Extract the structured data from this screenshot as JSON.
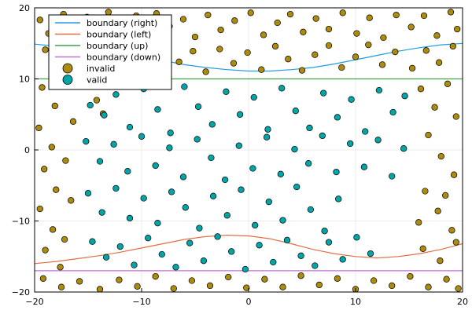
{
  "chart_data": {
    "type": "scatter",
    "xlim": [
      -20,
      20
    ],
    "ylim": [
      -20,
      20
    ],
    "x_ticks": [
      -20,
      -10,
      0,
      10,
      20
    ],
    "y_ticks": [
      -20,
      -10,
      0,
      10,
      20
    ],
    "x_tick_labels": [
      "−20",
      "−10",
      "0",
      "10",
      "20"
    ],
    "y_tick_labels": [
      "−20",
      "−10",
      "0",
      "10",
      "20"
    ],
    "grid": true,
    "legend_position": "top-left",
    "legend": [
      {
        "label": "boundary (right)",
        "kind": "line",
        "color": "#1f9ce4"
      },
      {
        "label": "boundary (left)",
        "kind": "line",
        "color": "#e26f46"
      },
      {
        "label": "boundary (up)",
        "kind": "line",
        "color": "#3ea44e"
      },
      {
        "label": "boundary (down)",
        "kind": "line",
        "color": "#c271d2"
      },
      {
        "label": "invalid",
        "kind": "marker",
        "color": "#ad8b0c"
      },
      {
        "label": "valid",
        "kind": "marker",
        "color": "#00a5a8"
      }
    ],
    "boundaries": {
      "up": {
        "y": 10,
        "color": "#3ea44e"
      },
      "down": {
        "y": -17,
        "color": "#c271d2"
      },
      "left": {
        "color": "#e26f46",
        "points": [
          [
            -20.0,
            -16.0
          ],
          [
            -18.0,
            -15.7
          ],
          [
            -16.0,
            -15.3
          ],
          [
            -14.0,
            -14.9
          ],
          [
            -12.0,
            -14.4
          ],
          [
            -10.0,
            -13.8
          ],
          [
            -8.0,
            -13.2
          ],
          [
            -6.0,
            -12.6
          ],
          [
            -4.0,
            -12.2
          ],
          [
            -2.0,
            -12.0
          ],
          [
            0.0,
            -12.1
          ],
          [
            2.0,
            -12.5
          ],
          [
            4.0,
            -13.2
          ],
          [
            5.0,
            -13.6
          ],
          [
            6.0,
            -14.0
          ],
          [
            8.0,
            -14.6
          ],
          [
            10.0,
            -15.0
          ],
          [
            12.0,
            -15.2
          ],
          [
            14.0,
            -15.0
          ],
          [
            16.0,
            -14.6
          ],
          [
            18.0,
            -14.0
          ],
          [
            20.0,
            -13.2
          ]
        ]
      },
      "right": {
        "color": "#1f9ce4",
        "points": [
          [
            -20.0,
            14.9
          ],
          [
            -18.0,
            14.6
          ],
          [
            -16.0,
            14.3
          ],
          [
            -14.0,
            14.1
          ],
          [
            -12.0,
            13.7
          ],
          [
            -10.0,
            13.2
          ],
          [
            -8.0,
            12.6
          ],
          [
            -6.0,
            12.0
          ],
          [
            -4.0,
            11.6
          ],
          [
            -2.0,
            11.3
          ],
          [
            0.0,
            11.1
          ],
          [
            2.0,
            11.1
          ],
          [
            4.0,
            11.3
          ],
          [
            6.0,
            11.6
          ],
          [
            8.0,
            12.1
          ],
          [
            10.0,
            12.7
          ],
          [
            12.0,
            13.3
          ],
          [
            14.0,
            13.9
          ],
          [
            16.0,
            14.4
          ],
          [
            18.0,
            14.8
          ],
          [
            20.0,
            15.0
          ]
        ]
      }
    },
    "colors": {
      "invalid": "#ad8b0c",
      "valid": "#00a5a8",
      "grid": "#ebebeb",
      "frame": "#000000"
    },
    "series": [
      {
        "name": "invalid",
        "points": [
          [
            -19.5,
            18.3
          ],
          [
            -18.7,
            16.4
          ],
          [
            -17.3,
            19.1
          ],
          [
            -16.2,
            17.2
          ],
          [
            -15.1,
            18.7
          ],
          [
            -14.3,
            16.0
          ],
          [
            -13.1,
            19.4
          ],
          [
            -11.8,
            17.6
          ],
          [
            -10.5,
            18.9
          ],
          [
            -9.2,
            16.3
          ],
          [
            -8.6,
            19.2
          ],
          [
            -7.4,
            17.4
          ],
          [
            -6.1,
            18.4
          ],
          [
            -5.0,
            15.9
          ],
          [
            -3.8,
            19.0
          ],
          [
            -2.6,
            16.9
          ],
          [
            -1.3,
            18.2
          ],
          [
            0.2,
            19.3
          ],
          [
            1.4,
            16.2
          ],
          [
            2.7,
            17.9
          ],
          [
            3.9,
            19.1
          ],
          [
            5.1,
            16.6
          ],
          [
            6.3,
            18.5
          ],
          [
            7.5,
            17.0
          ],
          [
            8.8,
            19.3
          ],
          [
            10.1,
            16.4
          ],
          [
            11.3,
            18.6
          ],
          [
            12.6,
            15.8
          ],
          [
            13.8,
            19.0
          ],
          [
            15.2,
            17.3
          ],
          [
            16.4,
            18.9
          ],
          [
            17.6,
            16.1
          ],
          [
            18.9,
            19.4
          ],
          [
            19.5,
            17.0
          ],
          [
            -19.0,
            14.1
          ],
          [
            -17.8,
            12.6
          ],
          [
            -16.7,
            14.8
          ],
          [
            -15.5,
            13.0
          ],
          [
            -14.2,
            11.4
          ],
          [
            -12.9,
            14.3
          ],
          [
            -11.6,
            12.0
          ],
          [
            -10.3,
            13.6
          ],
          [
            -9.0,
            11.1
          ],
          [
            -7.8,
            14.5
          ],
          [
            -6.5,
            12.4
          ],
          [
            -5.2,
            13.9
          ],
          [
            -4.0,
            11.0
          ],
          [
            -2.7,
            14.2
          ],
          [
            -1.4,
            12.2
          ],
          [
            -0.1,
            13.7
          ],
          [
            1.2,
            11.3
          ],
          [
            2.5,
            14.6
          ],
          [
            3.7,
            12.8
          ],
          [
            5.0,
            11.2
          ],
          [
            6.2,
            13.4
          ],
          [
            7.5,
            14.7
          ],
          [
            8.7,
            11.6
          ],
          [
            10.0,
            13.1
          ],
          [
            11.2,
            14.8
          ],
          [
            12.5,
            12.0
          ],
          [
            13.7,
            13.8
          ],
          [
            15.3,
            11.5
          ],
          [
            16.6,
            14.0
          ],
          [
            17.8,
            12.3
          ],
          [
            19.1,
            14.6
          ],
          [
            -19.3,
            8.8
          ],
          [
            -18.1,
            6.2
          ],
          [
            -19.6,
            3.1
          ],
          [
            -18.4,
            0.4
          ],
          [
            -19.1,
            -2.7
          ],
          [
            -18.0,
            -5.6
          ],
          [
            -19.5,
            -8.3
          ],
          [
            -18.3,
            -11.2
          ],
          [
            -19.0,
            -14.1
          ],
          [
            -17.6,
            -16.5
          ],
          [
            -16.9,
            9.1
          ],
          [
            -16.4,
            4.0
          ],
          [
            -17.1,
            -1.5
          ],
          [
            -16.6,
            -7.1
          ],
          [
            -17.2,
            -12.6
          ],
          [
            -14.2,
            7.0
          ],
          [
            -13.6,
            5.1
          ],
          [
            16.1,
            8.6
          ],
          [
            17.4,
            6.0
          ],
          [
            18.6,
            9.3
          ],
          [
            19.4,
            4.7
          ],
          [
            16.8,
            2.1
          ],
          [
            18.0,
            -0.9
          ],
          [
            19.2,
            -3.5
          ],
          [
            16.5,
            -5.8
          ],
          [
            17.7,
            -8.6
          ],
          [
            19.0,
            -11.3
          ],
          [
            16.3,
            -13.9
          ],
          [
            17.9,
            -15.6
          ],
          [
            19.4,
            -13.0
          ],
          [
            15.9,
            -10.2
          ],
          [
            18.4,
            -6.4
          ],
          [
            -19.2,
            -18.1
          ],
          [
            -17.5,
            -19.3
          ],
          [
            -15.8,
            -18.5
          ],
          [
            -13.9,
            -19.6
          ],
          [
            -12.1,
            -18.3
          ],
          [
            -10.4,
            -19.2
          ],
          [
            -8.7,
            -17.8
          ],
          [
            -7.0,
            -19.5
          ],
          [
            -5.3,
            -18.4
          ],
          [
            -3.6,
            -19.1
          ],
          [
            -1.9,
            -17.9
          ],
          [
            -0.2,
            -19.4
          ],
          [
            1.5,
            -18.2
          ],
          [
            3.2,
            -19.3
          ],
          [
            4.9,
            -17.7
          ],
          [
            6.6,
            -19.0
          ],
          [
            8.3,
            -18.1
          ],
          [
            10.0,
            -19.6
          ],
          [
            11.7,
            -18.4
          ],
          [
            13.4,
            -19.1
          ],
          [
            15.1,
            -17.8
          ],
          [
            16.8,
            -19.3
          ],
          [
            18.5,
            -18.2
          ],
          [
            19.6,
            -19.5
          ]
        ]
      },
      {
        "name": "valid",
        "points": [
          [
            -14.8,
            6.3
          ],
          [
            -13.5,
            4.9
          ],
          [
            -12.4,
            7.8
          ],
          [
            -11.1,
            3.2
          ],
          [
            -9.8,
            8.6
          ],
          [
            -8.5,
            5.7
          ],
          [
            -7.3,
            2.4
          ],
          [
            -6.0,
            8.9
          ],
          [
            -4.7,
            6.1
          ],
          [
            -3.4,
            3.6
          ],
          [
            -2.1,
            8.2
          ],
          [
            -0.8,
            5.0
          ],
          [
            0.5,
            7.4
          ],
          [
            1.8,
            2.9
          ],
          [
            3.1,
            8.7
          ],
          [
            4.4,
            5.5
          ],
          [
            5.7,
            3.1
          ],
          [
            7.0,
            8.0
          ],
          [
            8.3,
            4.6
          ],
          [
            9.6,
            7.1
          ],
          [
            10.9,
            2.6
          ],
          [
            12.2,
            8.4
          ],
          [
            13.5,
            5.3
          ],
          [
            14.6,
            7.6
          ],
          [
            -15.2,
            1.2
          ],
          [
            -13.9,
            -1.6
          ],
          [
            -12.6,
            0.8
          ],
          [
            -11.3,
            -3.0
          ],
          [
            -10.0,
            1.9
          ],
          [
            -8.7,
            -2.2
          ],
          [
            -7.4,
            0.3
          ],
          [
            -6.1,
            -3.8
          ],
          [
            -4.8,
            1.5
          ],
          [
            -3.5,
            -1.1
          ],
          [
            -2.2,
            -4.2
          ],
          [
            -0.9,
            0.6
          ],
          [
            0.4,
            -2.6
          ],
          [
            1.7,
            1.8
          ],
          [
            3.0,
            -3.4
          ],
          [
            4.3,
            0.1
          ],
          [
            5.6,
            -1.9
          ],
          [
            6.9,
            2.0
          ],
          [
            8.2,
            -3.1
          ],
          [
            9.5,
            0.9
          ],
          [
            10.8,
            -2.4
          ],
          [
            12.1,
            1.4
          ],
          [
            13.4,
            -3.7
          ],
          [
            14.5,
            0.2
          ],
          [
            -15.0,
            -6.1
          ],
          [
            -13.7,
            -8.8
          ],
          [
            -12.4,
            -5.4
          ],
          [
            -11.1,
            -9.6
          ],
          [
            -9.8,
            -6.8
          ],
          [
            -8.5,
            -10.3
          ],
          [
            -7.2,
            -5.9
          ],
          [
            -5.9,
            -8.1
          ],
          [
            -4.6,
            -11.0
          ],
          [
            -3.3,
            -6.5
          ],
          [
            -2.0,
            -9.2
          ],
          [
            -0.7,
            -5.6
          ],
          [
            0.6,
            -10.6
          ],
          [
            1.9,
            -7.3
          ],
          [
            3.2,
            -9.9
          ],
          [
            4.5,
            -5.2
          ],
          [
            5.8,
            -8.4
          ],
          [
            7.1,
            -11.4
          ],
          [
            8.4,
            -6.9
          ],
          [
            -14.6,
            -12.9
          ],
          [
            -13.3,
            -15.1
          ],
          [
            -12.0,
            -13.6
          ],
          [
            -10.7,
            -16.2
          ],
          [
            -9.4,
            -12.4
          ],
          [
            -8.1,
            -14.7
          ],
          [
            -6.8,
            -16.5
          ],
          [
            -5.5,
            -13.1
          ],
          [
            -4.2,
            -15.6
          ],
          [
            -2.9,
            -12.2
          ],
          [
            -1.6,
            -14.3
          ],
          [
            -0.3,
            -16.8
          ],
          [
            1.0,
            -13.4
          ],
          [
            2.3,
            -15.8
          ],
          [
            3.6,
            -12.7
          ],
          [
            4.9,
            -14.9
          ],
          [
            6.2,
            -16.3
          ],
          [
            7.5,
            -13.0
          ],
          [
            8.8,
            -15.4
          ],
          [
            10.1,
            -12.3
          ],
          [
            11.4,
            -14.6
          ]
        ]
      }
    ]
  }
}
